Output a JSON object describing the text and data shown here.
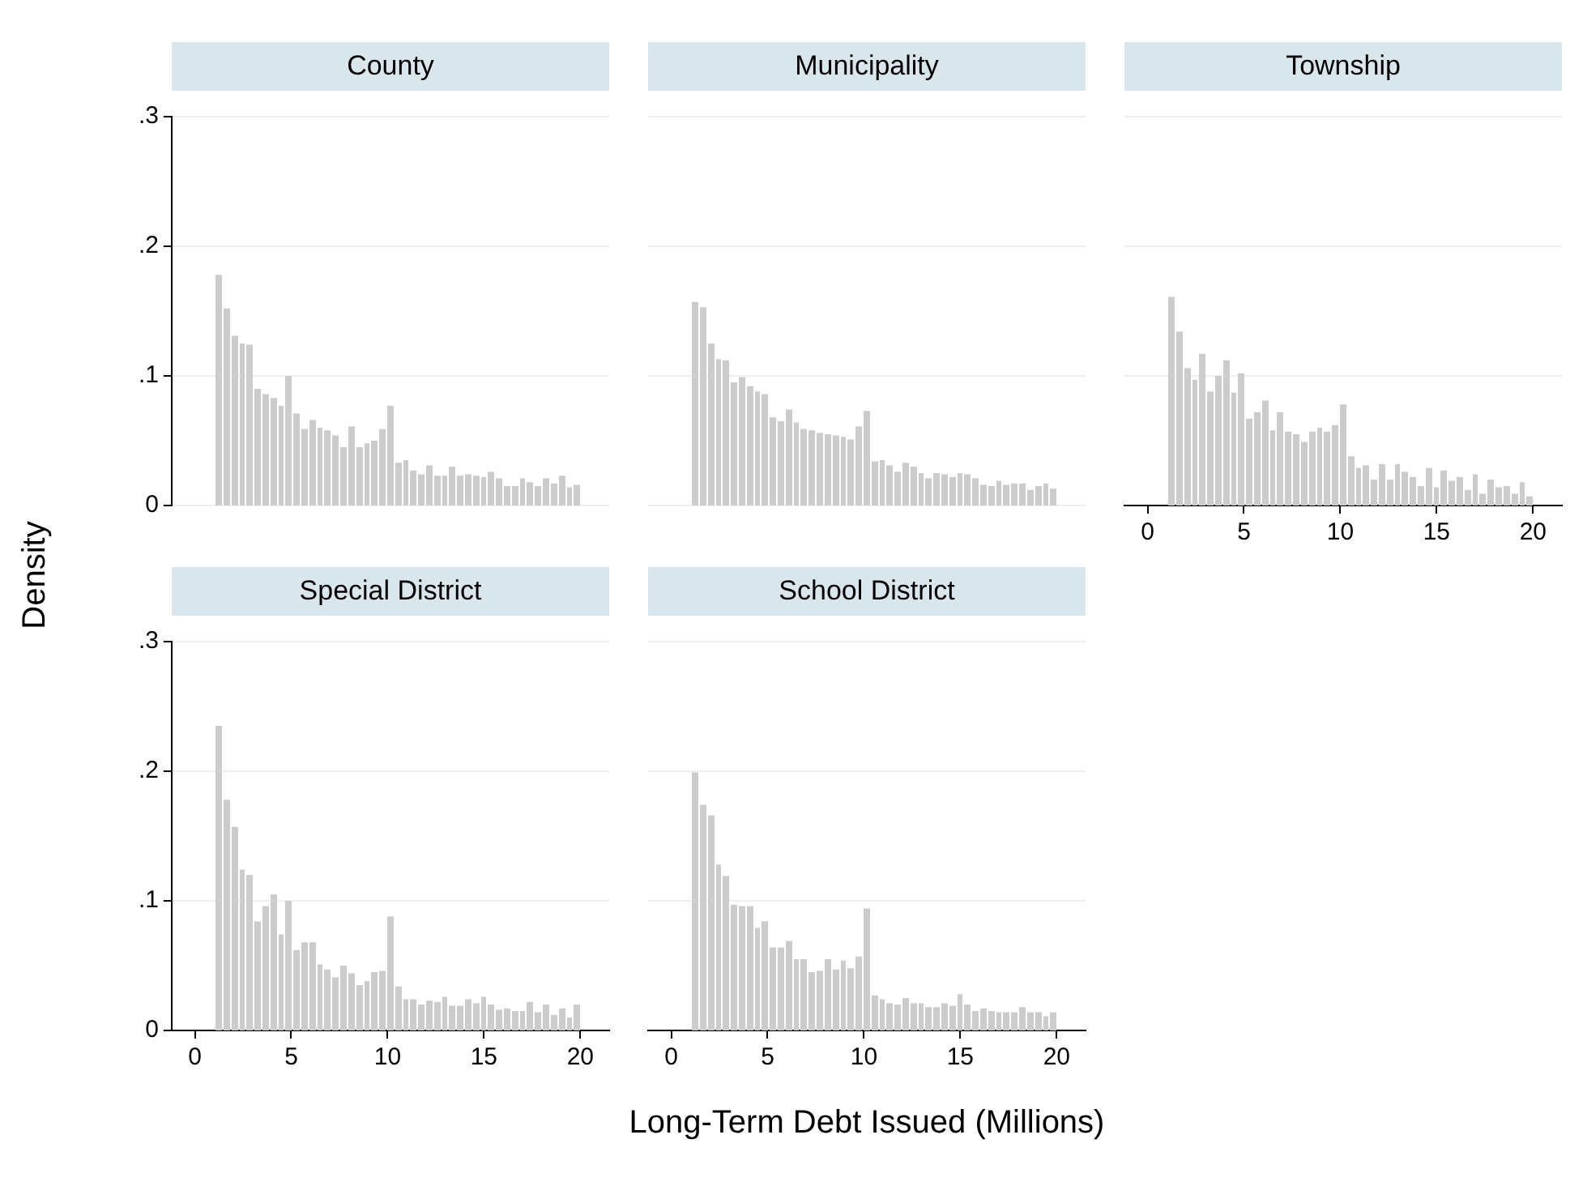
{
  "chart_data": [
    {
      "type": "histogram",
      "title": "County",
      "ylabel": "Density",
      "color": "#cccccc",
      "grid": "y",
      "tick_labels": "y",
      "xlim": [
        -1.2,
        21.5
      ],
      "ylim": [
        0,
        0.3
      ],
      "yticks": [
        0,
        {
          "value": 0.1,
          "label": ".1"
        },
        {
          "value": 0.2,
          "label": ".2"
        },
        {
          "value": 0.3,
          "label": ".3"
        }
      ],
      "bins": [
        1.0,
        1.404,
        1.809,
        2.213,
        2.617,
        3.021,
        3.426,
        3.83,
        4.234,
        4.638,
        5.043,
        5.447,
        5.851,
        6.255,
        6.66,
        7.064,
        7.468,
        7.872,
        8.277,
        8.681,
        9.085,
        9.489,
        9.894,
        10.298,
        10.702,
        11.106,
        11.511,
        11.915,
        12.319,
        12.723,
        13.128,
        13.532,
        13.936,
        14.34,
        14.745,
        15.149,
        15.553,
        15.957,
        16.362,
        16.766,
        17.17,
        17.574,
        17.979,
        18.383,
        18.787,
        19.191,
        19.596,
        20.0
      ],
      "values": [
        0.178,
        0.152,
        0.131,
        0.125,
        0.124,
        0.09,
        0.086,
        0.083,
        0.077,
        0.1,
        0.071,
        0.059,
        0.066,
        0.06,
        0.058,
        0.054,
        0.045,
        0.061,
        0.045,
        0.048,
        0.05,
        0.059,
        0.077,
        0.033,
        0.035,
        0.027,
        0.024,
        0.031,
        0.023,
        0.023,
        0.03,
        0.023,
        0.024,
        0.023,
        0.022,
        0.026,
        0.021,
        0.015,
        0.015,
        0.021,
        0.018,
        0.015,
        0.021,
        0.017,
        0.023,
        0.014,
        0.016
      ]
    },
    {
      "type": "histogram",
      "title": "Municipality",
      "color": "#cccccc",
      "grid": "y",
      "tick_labels": false,
      "xlim": [
        -1.2,
        21.5
      ],
      "ylim": [
        0,
        0.3
      ],
      "yticks": [
        0,
        0.1,
        0.2,
        0.3
      ],
      "bins": [
        1.0,
        1.404,
        1.809,
        2.213,
        2.617,
        3.021,
        3.426,
        3.83,
        4.234,
        4.638,
        5.043,
        5.447,
        5.851,
        6.255,
        6.66,
        7.064,
        7.468,
        7.872,
        8.277,
        8.681,
        9.085,
        9.489,
        9.894,
        10.298,
        10.702,
        11.106,
        11.511,
        11.915,
        12.319,
        12.723,
        13.128,
        13.532,
        13.936,
        14.34,
        14.745,
        15.149,
        15.553,
        15.957,
        16.362,
        16.766,
        17.17,
        17.574,
        17.979,
        18.383,
        18.787,
        19.191,
        19.596,
        20.0
      ],
      "values": [
        0.157,
        0.153,
        0.125,
        0.113,
        0.112,
        0.095,
        0.099,
        0.092,
        0.088,
        0.086,
        0.068,
        0.065,
        0.074,
        0.064,
        0.059,
        0.058,
        0.056,
        0.055,
        0.054,
        0.053,
        0.051,
        0.061,
        0.073,
        0.034,
        0.035,
        0.031,
        0.026,
        0.033,
        0.03,
        0.025,
        0.021,
        0.025,
        0.024,
        0.022,
        0.025,
        0.024,
        0.021,
        0.016,
        0.015,
        0.019,
        0.016,
        0.017,
        0.017,
        0.012,
        0.015,
        0.017,
        0.013
      ]
    },
    {
      "type": "histogram",
      "title": "Township",
      "color": "#cccccc",
      "grid": "y",
      "tick_labels": "x",
      "xlim": [
        -1.2,
        21.5
      ],
      "xticks": [
        0,
        5,
        10,
        15,
        20
      ],
      "ylim": [
        0,
        0.3
      ],
      "yticks": [
        0,
        0.1,
        0.2,
        0.3
      ],
      "bins": [
        1.0,
        1.404,
        1.809,
        2.213,
        2.617,
        3.021,
        3.426,
        3.83,
        4.234,
        4.638,
        5.043,
        5.447,
        5.851,
        6.255,
        6.66,
        7.064,
        7.468,
        7.872,
        8.277,
        8.681,
        9.085,
        9.489,
        9.894,
        10.298,
        10.702,
        11.106,
        11.511,
        11.915,
        12.319,
        12.723,
        13.128,
        13.532,
        13.936,
        14.34,
        14.745,
        15.149,
        15.553,
        15.957,
        16.362,
        16.766,
        17.17,
        17.574,
        17.979,
        18.383,
        18.787,
        19.191,
        19.596,
        20.0
      ],
      "values": [
        0.161,
        0.134,
        0.106,
        0.097,
        0.117,
        0.088,
        0.1,
        0.112,
        0.087,
        0.102,
        0.067,
        0.072,
        0.081,
        0.058,
        0.072,
        0.057,
        0.055,
        0.049,
        0.057,
        0.06,
        0.057,
        0.062,
        0.078,
        0.038,
        0.029,
        0.031,
        0.02,
        0.032,
        0.02,
        0.032,
        0.026,
        0.022,
        0.015,
        0.029,
        0.014,
        0.027,
        0.019,
        0.022,
        0.012,
        0.024,
        0.009,
        0.02,
        0.014,
        0.015,
        0.009,
        0.018,
        0.007
      ]
    },
    {
      "type": "histogram",
      "title": "Special District",
      "color": "#cccccc",
      "grid": "y",
      "xlim": [
        -1.2,
        21.5
      ],
      "xticks": [
        0,
        5,
        10,
        15,
        20
      ],
      "ylim": [
        0,
        0.3
      ],
      "yticks": [
        0,
        {
          "value": 0.1,
          "label": ".1"
        },
        {
          "value": 0.2,
          "label": ".2"
        },
        {
          "value": 0.3,
          "label": ".3"
        }
      ],
      "bins": [
        1.0,
        1.404,
        1.809,
        2.213,
        2.617,
        3.021,
        3.426,
        3.83,
        4.234,
        4.638,
        5.043,
        5.447,
        5.851,
        6.255,
        6.66,
        7.064,
        7.468,
        7.872,
        8.277,
        8.681,
        9.085,
        9.489,
        9.894,
        10.298,
        10.702,
        11.106,
        11.511,
        11.915,
        12.319,
        12.723,
        13.128,
        13.532,
        13.936,
        14.34,
        14.745,
        15.149,
        15.553,
        15.957,
        16.362,
        16.766,
        17.17,
        17.574,
        17.979,
        18.383,
        18.787,
        19.191,
        19.596,
        20.0
      ],
      "values": [
        0.235,
        0.178,
        0.157,
        0.124,
        0.12,
        0.084,
        0.096,
        0.105,
        0.074,
        0.1,
        0.062,
        0.068,
        0.068,
        0.051,
        0.047,
        0.041,
        0.05,
        0.044,
        0.035,
        0.038,
        0.045,
        0.046,
        0.088,
        0.034,
        0.024,
        0.024,
        0.02,
        0.023,
        0.022,
        0.026,
        0.019,
        0.019,
        0.024,
        0.021,
        0.026,
        0.02,
        0.016,
        0.017,
        0.015,
        0.015,
        0.022,
        0.014,
        0.02,
        0.012,
        0.017,
        0.01,
        0.02
      ]
    },
    {
      "type": "histogram",
      "title": "School District",
      "xlabel": "Long-Term Debt Issued (Millions)",
      "color": "#cccccc",
      "grid": "y",
      "tick_labels": "x",
      "xlim": [
        -1.2,
        21.5
      ],
      "xticks": [
        0,
        5,
        10,
        15,
        20
      ],
      "ylim": [
        0,
        0.3
      ],
      "yticks": [
        0,
        0.1,
        0.2,
        0.3
      ],
      "bins": [
        1.0,
        1.404,
        1.809,
        2.213,
        2.617,
        3.021,
        3.426,
        3.83,
        4.234,
        4.638,
        5.043,
        5.447,
        5.851,
        6.255,
        6.66,
        7.064,
        7.468,
        7.872,
        8.277,
        8.681,
        9.085,
        9.489,
        9.894,
        10.298,
        10.702,
        11.106,
        11.511,
        11.915,
        12.319,
        12.723,
        13.128,
        13.532,
        13.936,
        14.34,
        14.745,
        15.149,
        15.553,
        15.957,
        16.362,
        16.766,
        17.17,
        17.574,
        17.979,
        18.383,
        18.787,
        19.191,
        19.596,
        20.0
      ],
      "values": [
        0.199,
        0.174,
        0.166,
        0.128,
        0.119,
        0.097,
        0.096,
        0.096,
        0.079,
        0.084,
        0.064,
        0.064,
        0.069,
        0.055,
        0.055,
        0.045,
        0.046,
        0.055,
        0.047,
        0.054,
        0.048,
        0.057,
        0.094,
        0.027,
        0.024,
        0.021,
        0.02,
        0.025,
        0.021,
        0.021,
        0.018,
        0.018,
        0.021,
        0.019,
        0.028,
        0.02,
        0.015,
        0.017,
        0.015,
        0.014,
        0.014,
        0.014,
        0.018,
        0.014,
        0.014,
        0.011,
        0.014
      ]
    }
  ]
}
